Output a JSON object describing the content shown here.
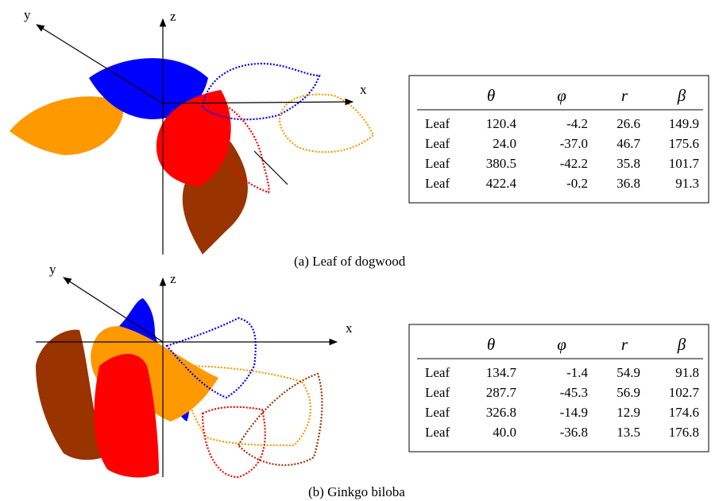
{
  "panels": [
    {
      "axes": {
        "x": "x",
        "y": "y",
        "z": "z"
      },
      "table": {
        "header": [
          "θ",
          "φ",
          "r",
          "β"
        ],
        "rows": [
          [
            "Leaf",
            "120.4",
            "-4.2",
            "26.6",
            "149.9"
          ],
          [
            "Leaf",
            "24.0",
            "-37.0",
            "46.7",
            "175.6"
          ],
          [
            "Leaf",
            "380.5",
            "-42.2",
            "35.8",
            "101.7"
          ],
          [
            "Leaf",
            "422.4",
            "-0.2",
            "36.8",
            "91.3"
          ]
        ]
      },
      "caption": "(a) Leaf of dogwood"
    },
    {
      "axes": {
        "x": "x",
        "y": "y",
        "z": "z"
      },
      "table": {
        "header": [
          "θ",
          "φ",
          "r",
          "β"
        ],
        "rows": [
          [
            "Leaf",
            "134.7",
            "-1.4",
            "54.9",
            "91.8"
          ],
          [
            "Leaf",
            "287.7",
            "-45.3",
            "56.9",
            "102.7"
          ],
          [
            "Leaf",
            "326.8",
            "-14.9",
            "12.9",
            "174.6"
          ],
          [
            "Leaf",
            "40.0",
            "-36.8",
            "13.5",
            "176.8"
          ]
        ]
      },
      "caption": "(b) Ginkgo biloba"
    }
  ]
}
